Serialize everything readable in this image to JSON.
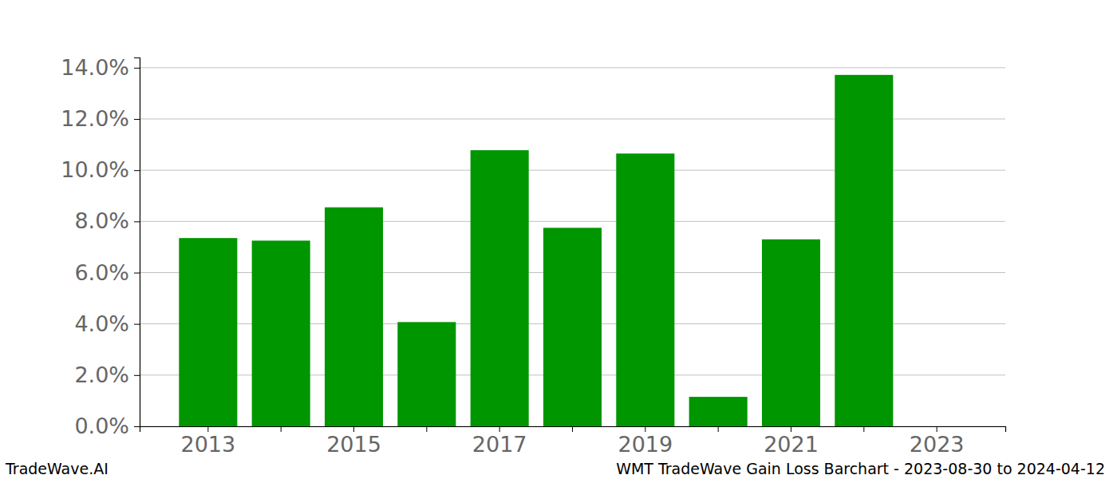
{
  "chart_data": {
    "type": "bar",
    "title": "WMT TradeWave Gain Loss Barchart - 2023-08-30 to 2024-04-12",
    "source": "TradeWave.AI",
    "categories": [
      "2013",
      null,
      "2015",
      null,
      "2017",
      null,
      "2019",
      null,
      "2021",
      null,
      "2023"
    ],
    "values": [
      7.35,
      7.25,
      8.55,
      4.07,
      10.78,
      7.75,
      10.65,
      1.15,
      7.3,
      13.72,
      0
    ],
    "color": "#009600",
    "ylim": [
      0,
      14.4
    ],
    "yticks": [
      {
        "value": 0,
        "label": "0.0%"
      },
      {
        "value": 2,
        "label": "2.0%"
      },
      {
        "value": 4,
        "label": "4.0%"
      },
      {
        "value": 6,
        "label": "6.0%"
      },
      {
        "value": 8,
        "label": "8.0%"
      },
      {
        "value": 10,
        "label": "10.0%"
      },
      {
        "value": 12,
        "label": "12.0%"
      },
      {
        "value": 14,
        "label": "14.0%"
      }
    ],
    "grid": true
  }
}
